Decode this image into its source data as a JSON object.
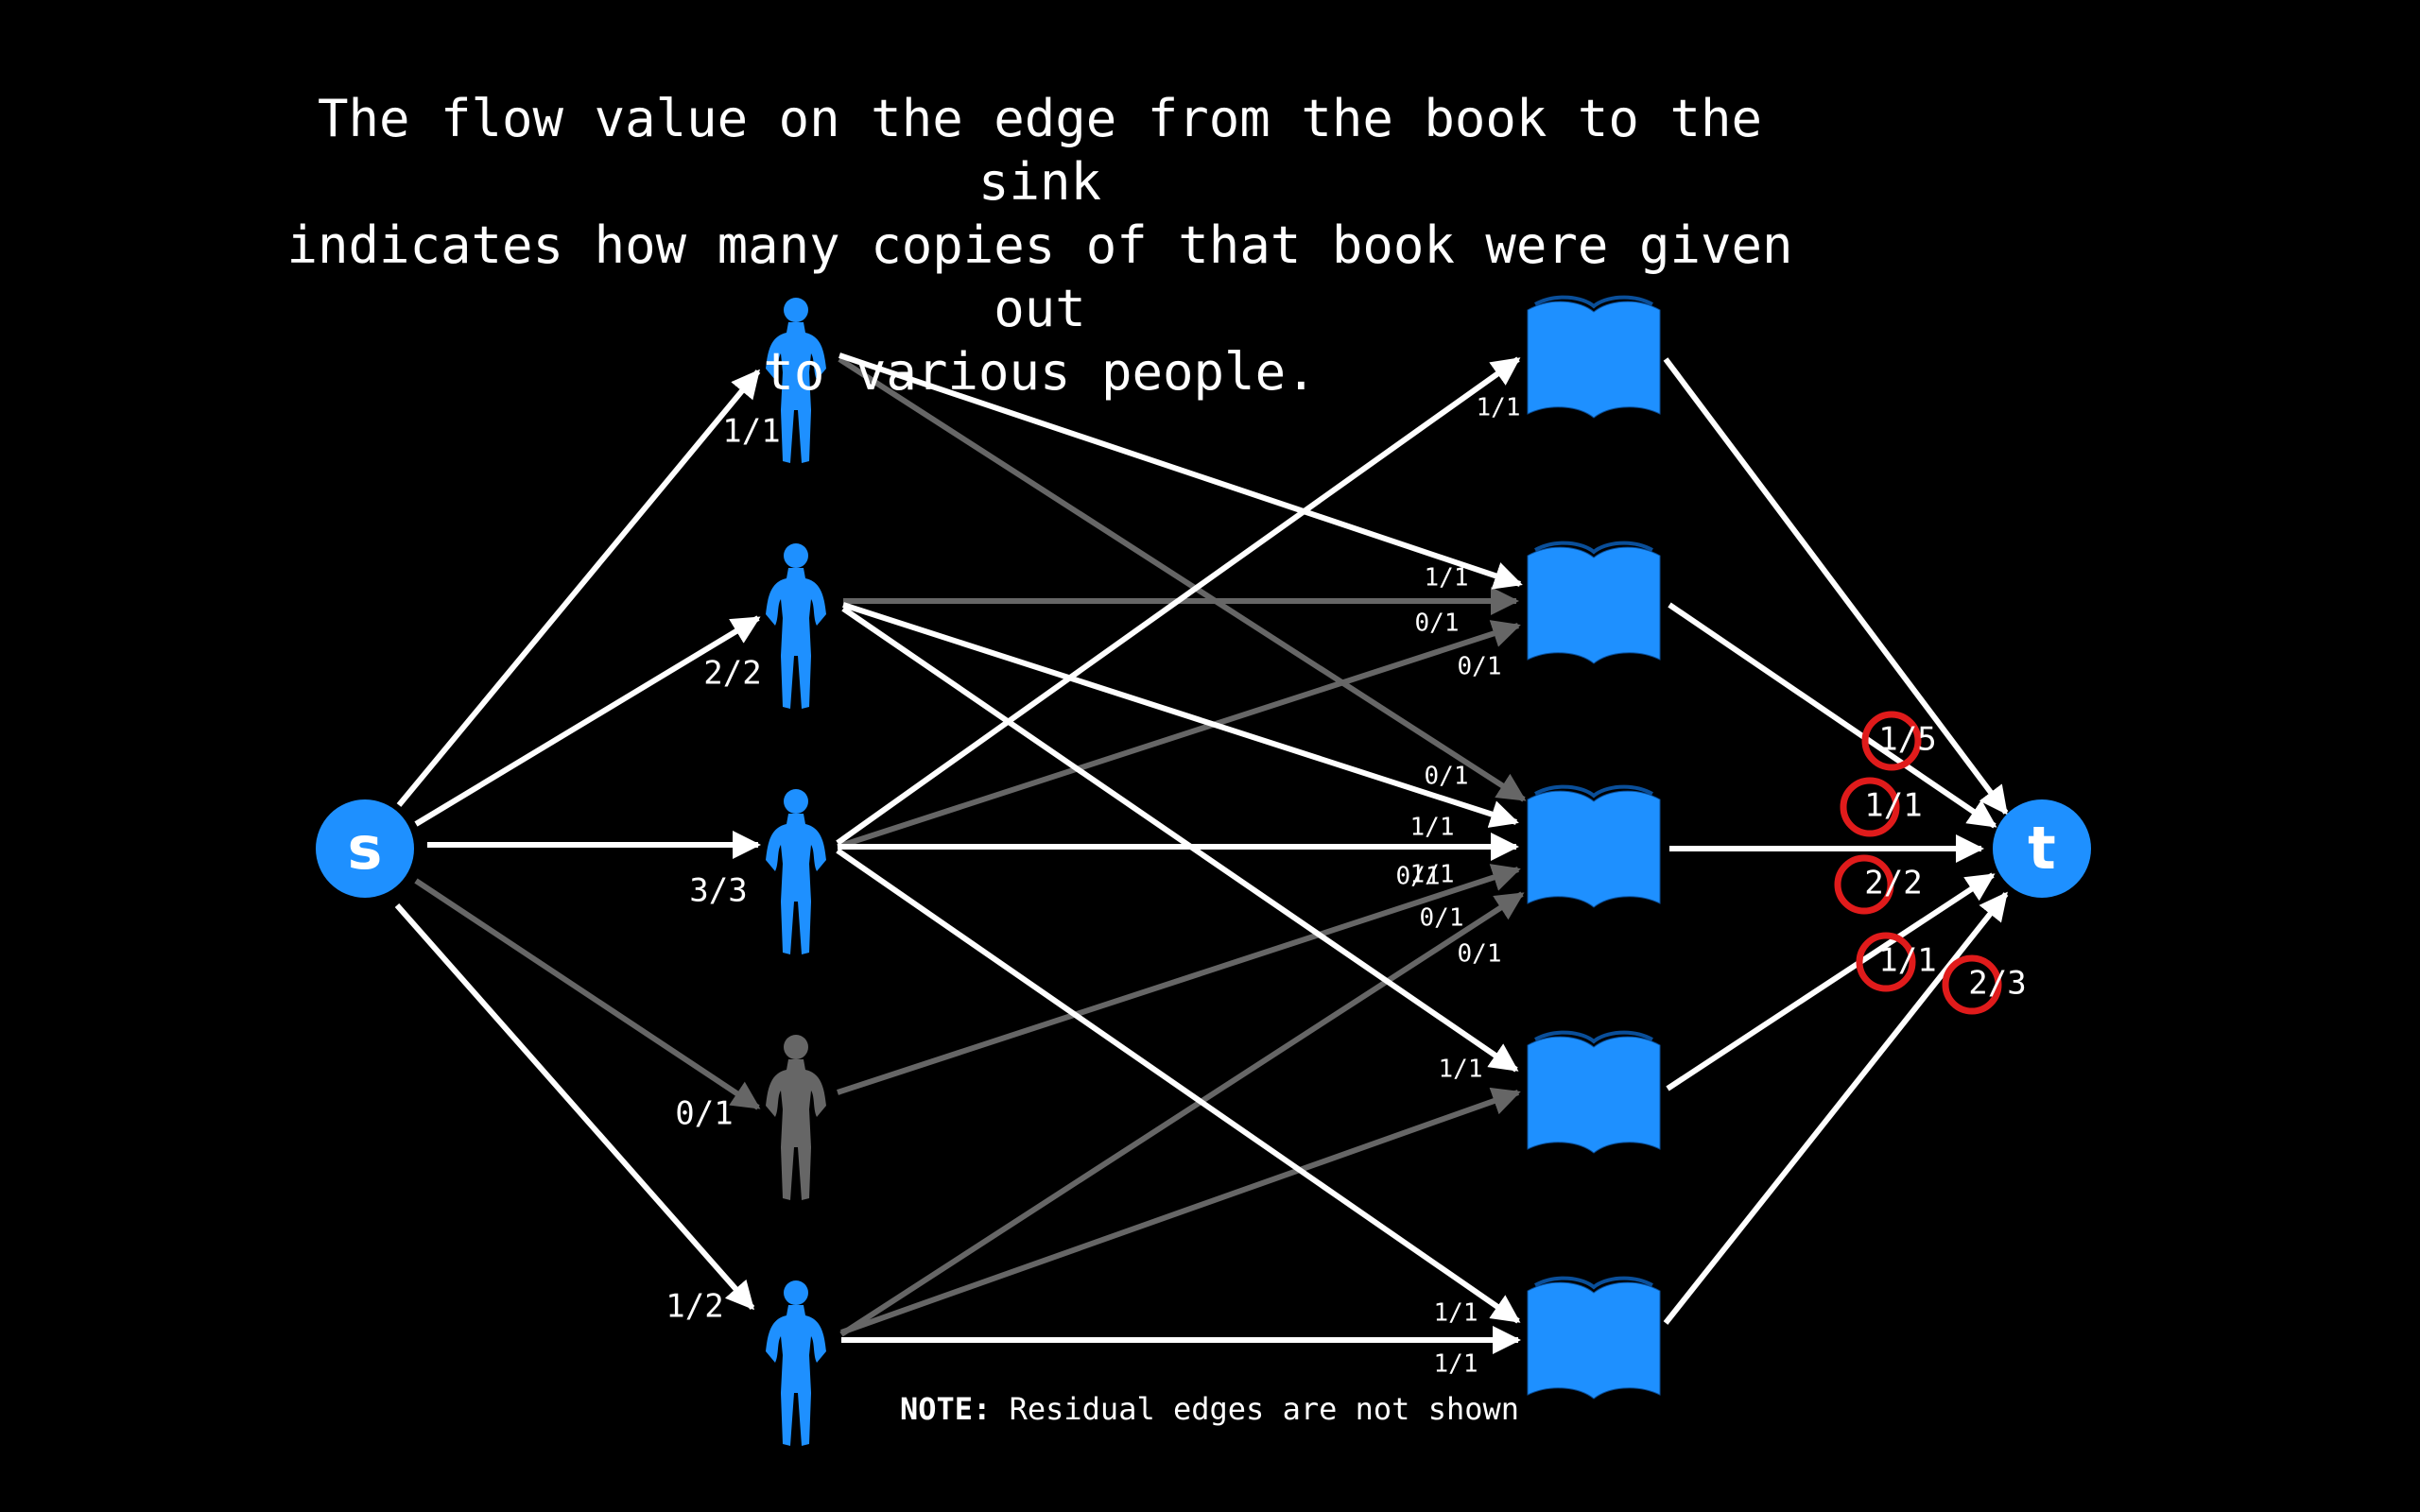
{
  "caption": {
    "line1": "The flow value on the edge from the book to the sink",
    "line2": "indicates how many copies of that book were given out",
    "line3": "to various people."
  },
  "note": {
    "label": "NOTE:",
    "text": "Residual edges are not shown"
  },
  "colors": {
    "background": "#000000",
    "accent": "#1e90ff",
    "inactive": "#666666",
    "edge": "#ffffff",
    "highlight": "#e01b1b"
  },
  "nodes": {
    "source": "s",
    "sink": "t",
    "people": [
      {
        "id": "p1",
        "active": true
      },
      {
        "id": "p2",
        "active": true
      },
      {
        "id": "p3",
        "active": true
      },
      {
        "id": "p4",
        "active": false
      },
      {
        "id": "p5",
        "active": true
      }
    ],
    "books": [
      "b1",
      "b2",
      "b3",
      "b4",
      "b5"
    ]
  },
  "edges": {
    "source_to_person": [
      {
        "to": "p1",
        "label": "1/1",
        "flow": 1
      },
      {
        "to": "p2",
        "label": "2/2",
        "flow": 2
      },
      {
        "to": "p3",
        "label": "3/3",
        "flow": 3
      },
      {
        "to": "p4",
        "label": "0/1",
        "flow": 0
      },
      {
        "to": "p5",
        "label": "1/2",
        "flow": 1
      }
    ],
    "person_to_book": [
      {
        "from": "p1",
        "to": "b2",
        "label": "1/1",
        "flow": 1
      },
      {
        "from": "p1",
        "to": "b3",
        "label": "0/1",
        "flow": 0
      },
      {
        "from": "p2",
        "to": "b2",
        "label": "0/1",
        "flow": 0
      },
      {
        "from": "p2",
        "to": "b3",
        "label": "1/1",
        "flow": 1
      },
      {
        "from": "p2",
        "to": "b4",
        "label": "1/1",
        "flow": 1
      },
      {
        "from": "p3",
        "to": "b1",
        "label": "1/1",
        "flow": 1
      },
      {
        "from": "p3",
        "to": "b2",
        "label": "0/1",
        "flow": 0
      },
      {
        "from": "p3",
        "to": "b3",
        "label": "1/1",
        "flow": 1
      },
      {
        "from": "p3",
        "to": "b5",
        "label": "1/1",
        "flow": 1
      },
      {
        "from": "p4",
        "to": "b3",
        "label": "0/1",
        "flow": 0
      },
      {
        "from": "p5",
        "to": "b3",
        "label": "0/1",
        "flow": 0
      },
      {
        "from": "p5",
        "to": "b4",
        "label": "0/1",
        "flow": 0
      },
      {
        "from": "p5",
        "to": "b5",
        "label": "1/1",
        "flow": 1
      }
    ],
    "book_to_sink": [
      {
        "from": "b1",
        "label": "1/5",
        "flow": 1
      },
      {
        "from": "b2",
        "label": "1/1",
        "flow": 1
      },
      {
        "from": "b3",
        "label": "2/2",
        "flow": 2
      },
      {
        "from": "b4",
        "label": "1/1",
        "flow": 1
      },
      {
        "from": "b5",
        "label": "2/3",
        "flow": 2
      }
    ]
  }
}
